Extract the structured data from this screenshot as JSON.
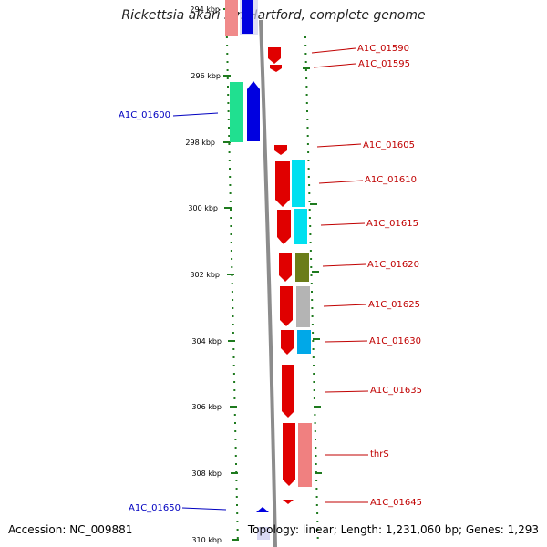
{
  "title": "Rickettsia akari str. Hartford, complete genome",
  "footer": {
    "accession": "Accession: NC_009881",
    "info": "Topology: linear; Length: 1,231,060 bp; Genes: 1,293"
  },
  "ticks": [
    "294 kbp",
    "296 kbp",
    "298 kbp",
    "300 kbp",
    "302 kbp",
    "304 kbp",
    "306 kbp",
    "308 kbp",
    "310 kbp"
  ],
  "colors": {
    "forward_label": "#c00000",
    "reverse_label": "#0000c0",
    "tick": "#1e7a1e",
    "backbone": "#8c8c8c"
  },
  "genes": [
    {
      "label": "A1C_01590",
      "strand": "+"
    },
    {
      "label": "A1C_01595",
      "strand": "+"
    },
    {
      "label": "A1C_01600",
      "strand": "-"
    },
    {
      "label": "A1C_01605",
      "strand": "+"
    },
    {
      "label": "A1C_01610",
      "strand": "+"
    },
    {
      "label": "A1C_01615",
      "strand": "+"
    },
    {
      "label": "A1C_01620",
      "strand": "+"
    },
    {
      "label": "A1C_01625",
      "strand": "+"
    },
    {
      "label": "A1C_01630",
      "strand": "+"
    },
    {
      "label": "A1C_01635",
      "strand": "+"
    },
    {
      "label": "thrS",
      "strand": "+"
    },
    {
      "label": "A1C_01645",
      "strand": "+"
    },
    {
      "label": "A1C_01650",
      "strand": "-"
    }
  ]
}
